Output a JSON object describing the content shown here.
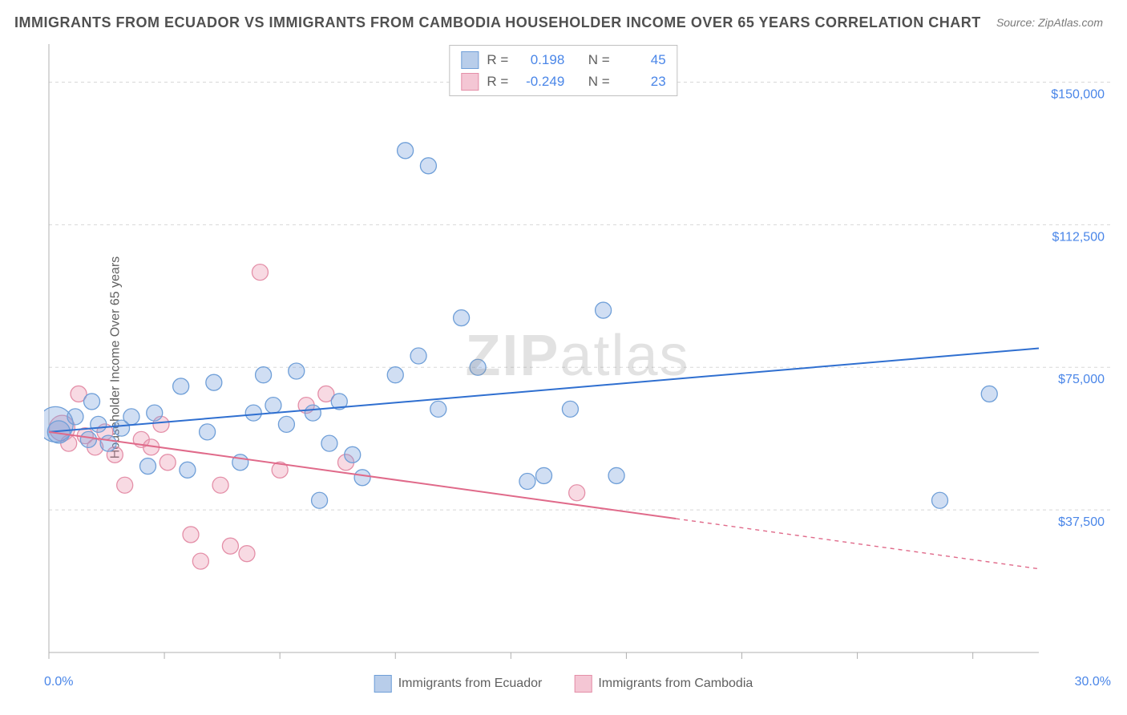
{
  "title": "IMMIGRANTS FROM ECUADOR VS IMMIGRANTS FROM CAMBODIA HOUSEHOLDER INCOME OVER 65 YEARS CORRELATION CHART",
  "source": "Source: ZipAtlas.com",
  "ylabel": "Householder Income Over 65 years",
  "watermark_a": "ZIP",
  "watermark_b": "atlas",
  "chart": {
    "type": "scatter",
    "xlim": [
      0,
      30
    ],
    "ylim": [
      0,
      160000
    ],
    "x_min_label": "0.0%",
    "x_max_label": "30.0%",
    "y_ticks": [
      37500,
      75000,
      112500,
      150000
    ],
    "y_tick_labels": [
      "$37,500",
      "$75,000",
      "$112,500",
      "$150,000"
    ],
    "x_minor_ticks": [
      0,
      3.5,
      7,
      10.5,
      14,
      17.5,
      21,
      24.5,
      28
    ],
    "background_color": "#ffffff",
    "grid_color": "#d8d8d8",
    "axis_color": "#b0b0b0",
    "tick_label_color": "#4a86e8",
    "series": [
      {
        "name": "Immigrants from Ecuador",
        "color_fill": "rgba(120,160,220,0.35)",
        "color_stroke": "#6f9fd8",
        "swatch_fill": "#b8cdea",
        "swatch_stroke": "#6f9fd8",
        "marker_r": 10,
        "trend": {
          "x1": 0,
          "y1": 58000,
          "x2": 30,
          "y2": 80000,
          "solid_until_x": 30,
          "color": "#2f6fd0",
          "width": 2
        },
        "stats": {
          "R": "0.198",
          "N": "45"
        },
        "points": [
          [
            0.2,
            60000,
            22
          ],
          [
            0.3,
            58000,
            14
          ],
          [
            0.8,
            62000
          ],
          [
            1.2,
            56000
          ],
          [
            1.3,
            66000
          ],
          [
            1.5,
            60000
          ],
          [
            1.8,
            55000
          ],
          [
            2.2,
            59000
          ],
          [
            2.5,
            62000
          ],
          [
            3.0,
            49000
          ],
          [
            3.2,
            63000
          ],
          [
            4.0,
            70000
          ],
          [
            4.2,
            48000
          ],
          [
            4.8,
            58000
          ],
          [
            5.0,
            71000
          ],
          [
            5.8,
            50000
          ],
          [
            6.2,
            63000
          ],
          [
            6.5,
            73000
          ],
          [
            6.8,
            65000
          ],
          [
            7.2,
            60000
          ],
          [
            7.5,
            74000
          ],
          [
            8.0,
            63000
          ],
          [
            8.2,
            40000
          ],
          [
            8.5,
            55000
          ],
          [
            8.8,
            66000
          ],
          [
            9.2,
            52000
          ],
          [
            9.5,
            46000
          ],
          [
            10.5,
            73000
          ],
          [
            10.8,
            132000
          ],
          [
            11.2,
            78000
          ],
          [
            11.5,
            128000
          ],
          [
            11.8,
            64000
          ],
          [
            12.5,
            88000
          ],
          [
            13.0,
            75000
          ],
          [
            14.5,
            45000
          ],
          [
            15.0,
            46500
          ],
          [
            15.8,
            64000
          ],
          [
            16.8,
            90000
          ],
          [
            17.2,
            46500
          ],
          [
            27.0,
            40000
          ],
          [
            28.5,
            68000
          ]
        ]
      },
      {
        "name": "Immigrants from Cambodia",
        "color_fill": "rgba(235,150,175,0.35)",
        "color_stroke": "#e48fa8",
        "swatch_fill": "#f4c6d4",
        "swatch_stroke": "#e48fa8",
        "marker_r": 10,
        "trend": {
          "x1": 0,
          "y1": 58000,
          "x2": 30,
          "y2": 22000,
          "solid_until_x": 19,
          "color": "#e06a8a",
          "width": 2
        },
        "stats": {
          "R": "-0.249",
          "N": "23"
        },
        "points": [
          [
            0.4,
            59000,
            16
          ],
          [
            0.6,
            55000
          ],
          [
            0.9,
            68000
          ],
          [
            1.1,
            57000
          ],
          [
            1.4,
            54000
          ],
          [
            1.7,
            58000
          ],
          [
            2.0,
            52000
          ],
          [
            2.3,
            44000
          ],
          [
            2.8,
            56000
          ],
          [
            3.1,
            54000
          ],
          [
            3.4,
            60000
          ],
          [
            3.6,
            50000
          ],
          [
            4.3,
            31000
          ],
          [
            4.6,
            24000
          ],
          [
            5.2,
            44000
          ],
          [
            5.5,
            28000
          ],
          [
            6.0,
            26000
          ],
          [
            6.4,
            100000
          ],
          [
            7.0,
            48000
          ],
          [
            7.8,
            65000
          ],
          [
            8.4,
            68000
          ],
          [
            9.0,
            50000
          ],
          [
            16.0,
            42000
          ]
        ]
      }
    ]
  },
  "legend": {
    "series1": "Immigrants from Ecuador",
    "series2": "Immigrants from Cambodia"
  },
  "stats_labels": {
    "R": "R =",
    "N": "N ="
  }
}
